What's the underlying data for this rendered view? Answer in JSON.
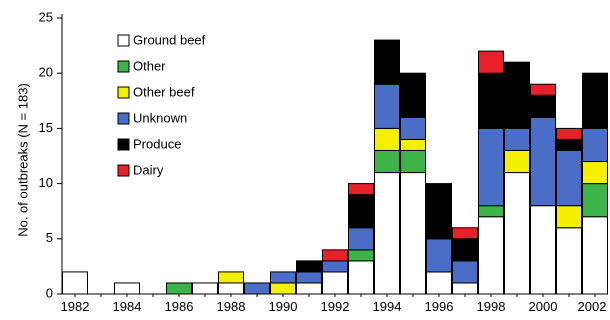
{
  "chart_data": {
    "type": "bar",
    "stacked": true,
    "title": "",
    "xlabel": "",
    "ylabel": "No. of outbreaks (N = 183)",
    "ylim": [
      0,
      25
    ],
    "yticks": [
      0,
      5,
      10,
      15,
      20,
      25
    ],
    "categories": [
      "1982",
      "1983",
      "1984",
      "1985",
      "1986",
      "1987",
      "1988",
      "1989",
      "1990",
      "1991",
      "1992",
      "1993",
      "1994",
      "1995",
      "1996",
      "1997",
      "1998",
      "1999",
      "2000",
      "2001",
      "2002"
    ],
    "x_tick_labels": [
      "1982",
      "1984",
      "1986",
      "1988",
      "1990",
      "1992",
      "1994",
      "1996",
      "1998",
      "2000",
      "2002"
    ],
    "legend_position": "upper-left",
    "grid": false,
    "series": [
      {
        "name": "Ground beef",
        "color": "#ffffff",
        "values": [
          2,
          0,
          1,
          0,
          0,
          1,
          1,
          0,
          0,
          1,
          2,
          3,
          11,
          11,
          2,
          1,
          7,
          11,
          8,
          6,
          7
        ]
      },
      {
        "name": "Other",
        "color": "#3cb44a",
        "values": [
          0,
          0,
          0,
          0,
          1,
          0,
          0,
          0,
          0,
          0,
          0,
          1,
          2,
          2,
          0,
          0,
          1,
          0,
          0,
          0,
          3
        ]
      },
      {
        "name": "Other beef",
        "color": "#f5f000",
        "values": [
          0,
          0,
          0,
          0,
          0,
          0,
          1,
          0,
          1,
          0,
          0,
          0,
          2,
          1,
          0,
          0,
          0,
          2,
          0,
          2,
          2
        ]
      },
      {
        "name": "Unknown",
        "color": "#4a6ec8",
        "values": [
          0,
          0,
          0,
          0,
          0,
          0,
          0,
          1,
          1,
          1,
          1,
          2,
          4,
          2,
          3,
          2,
          7,
          2,
          8,
          5,
          3
        ]
      },
      {
        "name": "Produce",
        "color": "#000000",
        "values": [
          0,
          0,
          0,
          0,
          0,
          0,
          0,
          0,
          0,
          1,
          0,
          3,
          4,
          4,
          5,
          2,
          5,
          6,
          2,
          1,
          5
        ]
      },
      {
        "name": "Dairy",
        "color": "#e8202a",
        "values": [
          0,
          0,
          0,
          0,
          0,
          0,
          0,
          0,
          0,
          0,
          1,
          1,
          0,
          0,
          0,
          1,
          2,
          0,
          1,
          1,
          0
        ]
      }
    ]
  }
}
